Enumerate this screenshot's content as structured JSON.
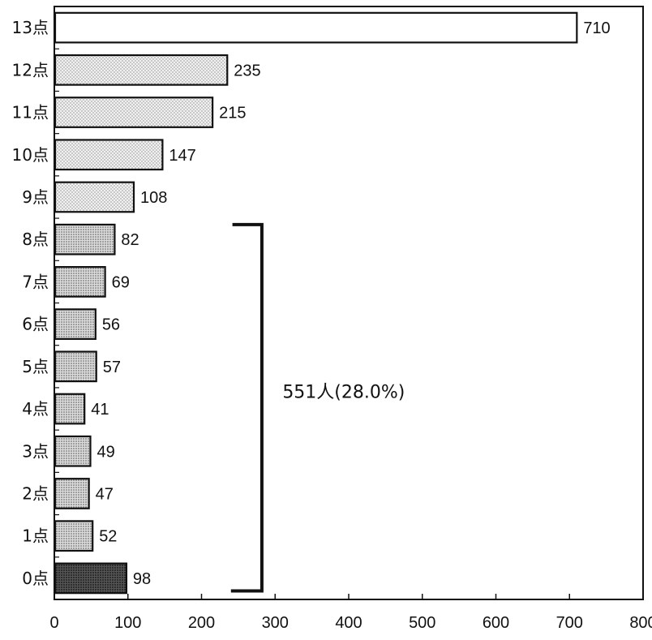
{
  "chart_data": {
    "type": "bar",
    "orientation": "horizontal",
    "categories": [
      "13点",
      "12点",
      "11点",
      "10点",
      "9点",
      "8点",
      "7点",
      "6点",
      "5点",
      "4点",
      "3点",
      "2点",
      "1点",
      "0点"
    ],
    "values": [
      710,
      235,
      215,
      147,
      108,
      82,
      69,
      56,
      57,
      41,
      49,
      47,
      52,
      98
    ],
    "value_labels": [
      "710",
      "235",
      "215",
      "147",
      "108",
      "82",
      "69",
      "56",
      "57",
      "41",
      "49",
      "47",
      "52",
      "98"
    ],
    "xlim": [
      0,
      800
    ],
    "x_ticks": [
      0,
      100,
      200,
      300,
      400,
      500,
      600,
      700,
      800
    ],
    "x_tick_labels": [
      "0",
      "100",
      "200",
      "300",
      "400",
      "500",
      "600",
      "700",
      "800"
    ],
    "title": "",
    "xlabel": "",
    "ylabel": "",
    "grid": false,
    "legend": "none",
    "bar_colors": {
      "13点": "#ffffff",
      "12点": "#e3e3e3",
      "11点": "#e3e3e3",
      "10点": "#e3e3e3",
      "9点": "#e3e3e3",
      "8点": "#c4c4c4",
      "7点": "#c4c4c4",
      "6点": "#c4c4c4",
      "5点": "#c4c4c4",
      "4点": "#c4c4c4",
      "3点": "#c4c4c4",
      "2点": "#c4c4c4",
      "1点": "#c4c4c4",
      "0点": "#3a3a3a"
    },
    "annotation": {
      "text": "551人(28.0%)",
      "bracket_from": "8点",
      "bracket_to": "0点"
    }
  }
}
